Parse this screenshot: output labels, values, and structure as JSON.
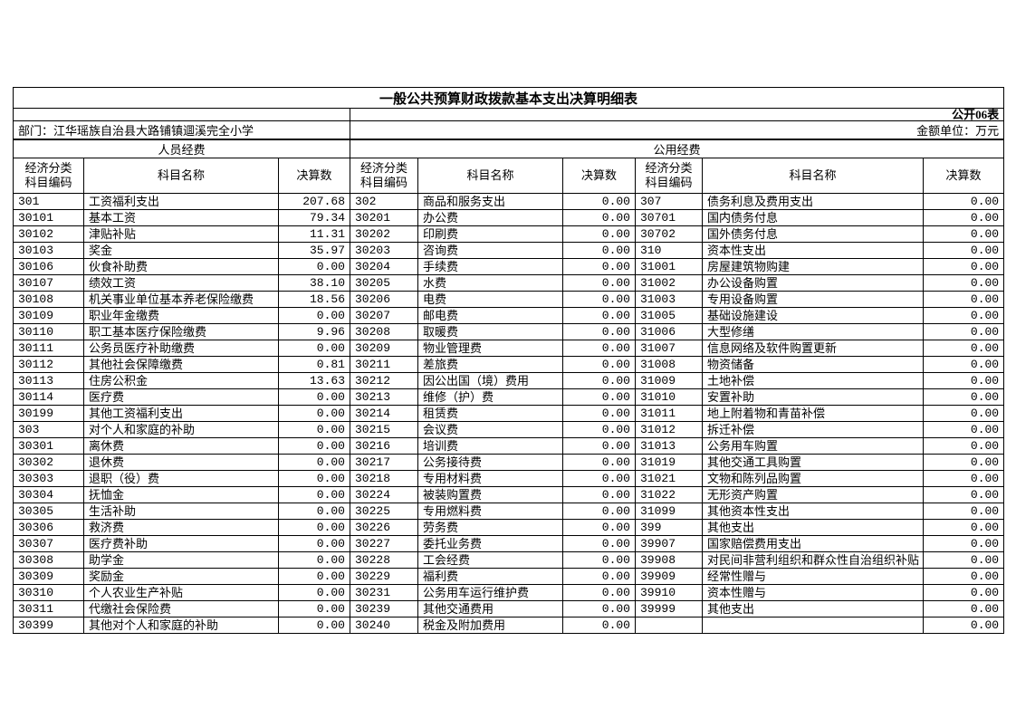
{
  "header": {
    "title": "一般公共预算财政拨款基本支出决算明细表",
    "table_label": "公开06表",
    "department": "部门：江华瑶族自治县大路铺镇逥溪完全小学",
    "unit": "金额单位：万元"
  },
  "sections": {
    "personnel": "人员经费",
    "public": "公用经费"
  },
  "columns": {
    "code_line1": "经济分类",
    "code_line2": "科目编码",
    "name": "科目名称",
    "value": "决算数"
  },
  "table": {
    "row_count": 27,
    "groups": [
      {
        "section": "人员经费",
        "rows": [
          [
            "301",
            "工资福利支出",
            "207.68"
          ],
          [
            "30101",
            "基本工资",
            "79.34"
          ],
          [
            "30102",
            "津贴补贴",
            "11.31"
          ],
          [
            "30103",
            "奖金",
            "35.97"
          ],
          [
            "30106",
            "伙食补助费",
            "0.00"
          ],
          [
            "30107",
            "绩效工资",
            "38.10"
          ],
          [
            "30108",
            "机关事业单位基本养老保险缴费",
            "18.56"
          ],
          [
            "30109",
            "职业年金缴费",
            "0.00"
          ],
          [
            "30110",
            "职工基本医疗保险缴费",
            "9.96"
          ],
          [
            "30111",
            "公务员医疗补助缴费",
            "0.00"
          ],
          [
            "30112",
            "其他社会保障缴费",
            "0.81"
          ],
          [
            "30113",
            "住房公积金",
            "13.63"
          ],
          [
            "30114",
            "医疗费",
            "0.00"
          ],
          [
            "30199",
            "其他工资福利支出",
            "0.00"
          ],
          [
            "303",
            "对个人和家庭的补助",
            "0.00"
          ],
          [
            "30301",
            "离休费",
            "0.00"
          ],
          [
            "30302",
            "退休费",
            "0.00"
          ],
          [
            "30303",
            "退职（役）费",
            "0.00"
          ],
          [
            "30304",
            "抚恤金",
            "0.00"
          ],
          [
            "30305",
            "生活补助",
            "0.00"
          ],
          [
            "30306",
            "救济费",
            "0.00"
          ],
          [
            "30307",
            "医疗费补助",
            "0.00"
          ],
          [
            "30308",
            "助学金",
            "0.00"
          ],
          [
            "30309",
            "奖励金",
            "0.00"
          ],
          [
            "30310",
            "个人农业生产补贴",
            "0.00"
          ],
          [
            "30311",
            "代缴社会保险费",
            "0.00"
          ],
          [
            "30399",
            "其他对个人和家庭的补助",
            "0.00"
          ]
        ]
      },
      {
        "section": "公用经费",
        "rows": [
          [
            "302",
            "商品和服务支出",
            "0.00"
          ],
          [
            "30201",
            "办公费",
            "0.00"
          ],
          [
            "30202",
            "印刷费",
            "0.00"
          ],
          [
            "30203",
            "咨询费",
            "0.00"
          ],
          [
            "30204",
            "手续费",
            "0.00"
          ],
          [
            "30205",
            "水费",
            "0.00"
          ],
          [
            "30206",
            "电费",
            "0.00"
          ],
          [
            "30207",
            "邮电费",
            "0.00"
          ],
          [
            "30208",
            "取暖费",
            "0.00"
          ],
          [
            "30209",
            "物业管理费",
            "0.00"
          ],
          [
            "30211",
            "差旅费",
            "0.00"
          ],
          [
            "30212",
            "因公出国（境）费用",
            "0.00"
          ],
          [
            "30213",
            "维修（护）费",
            "0.00"
          ],
          [
            "30214",
            "租赁费",
            "0.00"
          ],
          [
            "30215",
            "会议费",
            "0.00"
          ],
          [
            "30216",
            "培训费",
            "0.00"
          ],
          [
            "30217",
            "公务接待费",
            "0.00"
          ],
          [
            "30218",
            "专用材料费",
            "0.00"
          ],
          [
            "30224",
            "被装购置费",
            "0.00"
          ],
          [
            "30225",
            "专用燃料费",
            "0.00"
          ],
          [
            "30226",
            "劳务费",
            "0.00"
          ],
          [
            "30227",
            "委托业务费",
            "0.00"
          ],
          [
            "30228",
            "工会经费",
            "0.00"
          ],
          [
            "30229",
            "福利费",
            "0.00"
          ],
          [
            "30231",
            "公务用车运行维护费",
            "0.00"
          ],
          [
            "30239",
            "其他交通费用",
            "0.00"
          ],
          [
            "30240",
            "税金及附加费用",
            "0.00"
          ]
        ]
      },
      {
        "section": "公用经费",
        "rows": [
          [
            "307",
            "债务利息及费用支出",
            "0.00"
          ],
          [
            "30701",
            "国内债务付息",
            "0.00"
          ],
          [
            "30702",
            "国外债务付息",
            "0.00"
          ],
          [
            "310",
            "资本性支出",
            "0.00"
          ],
          [
            "31001",
            "房屋建筑物购建",
            "0.00"
          ],
          [
            "31002",
            "办公设备购置",
            "0.00"
          ],
          [
            "31003",
            "专用设备购置",
            "0.00"
          ],
          [
            "31005",
            "基础设施建设",
            "0.00"
          ],
          [
            "31006",
            "大型修缮",
            "0.00"
          ],
          [
            "31007",
            "信息网络及软件购置更新",
            "0.00"
          ],
          [
            "31008",
            "物资储备",
            "0.00"
          ],
          [
            "31009",
            "土地补偿",
            "0.00"
          ],
          [
            "31010",
            "安置补助",
            "0.00"
          ],
          [
            "31011",
            "地上附着物和青苗补偿",
            "0.00"
          ],
          [
            "31012",
            "拆迁补偿",
            "0.00"
          ],
          [
            "31013",
            "公务用车购置",
            "0.00"
          ],
          [
            "31019",
            "其他交通工具购置",
            "0.00"
          ],
          [
            "31021",
            "文物和陈列品购置",
            "0.00"
          ],
          [
            "31022",
            "无形资产购置",
            "0.00"
          ],
          [
            "31099",
            "其他资本性支出",
            "0.00"
          ],
          [
            "399",
            "其他支出",
            "0.00"
          ],
          [
            "39907",
            "国家赔偿费用支出",
            "0.00"
          ],
          [
            "39908",
            "对民间非营利组织和群众性自治组织补贴",
            "0.00"
          ],
          [
            "39909",
            "经常性赠与",
            "0.00"
          ],
          [
            "39910",
            "资本性赠与",
            "0.00"
          ],
          [
            "39999",
            "其他支出",
            "0.00"
          ],
          [
            "",
            "",
            "0.00"
          ]
        ]
      }
    ]
  }
}
